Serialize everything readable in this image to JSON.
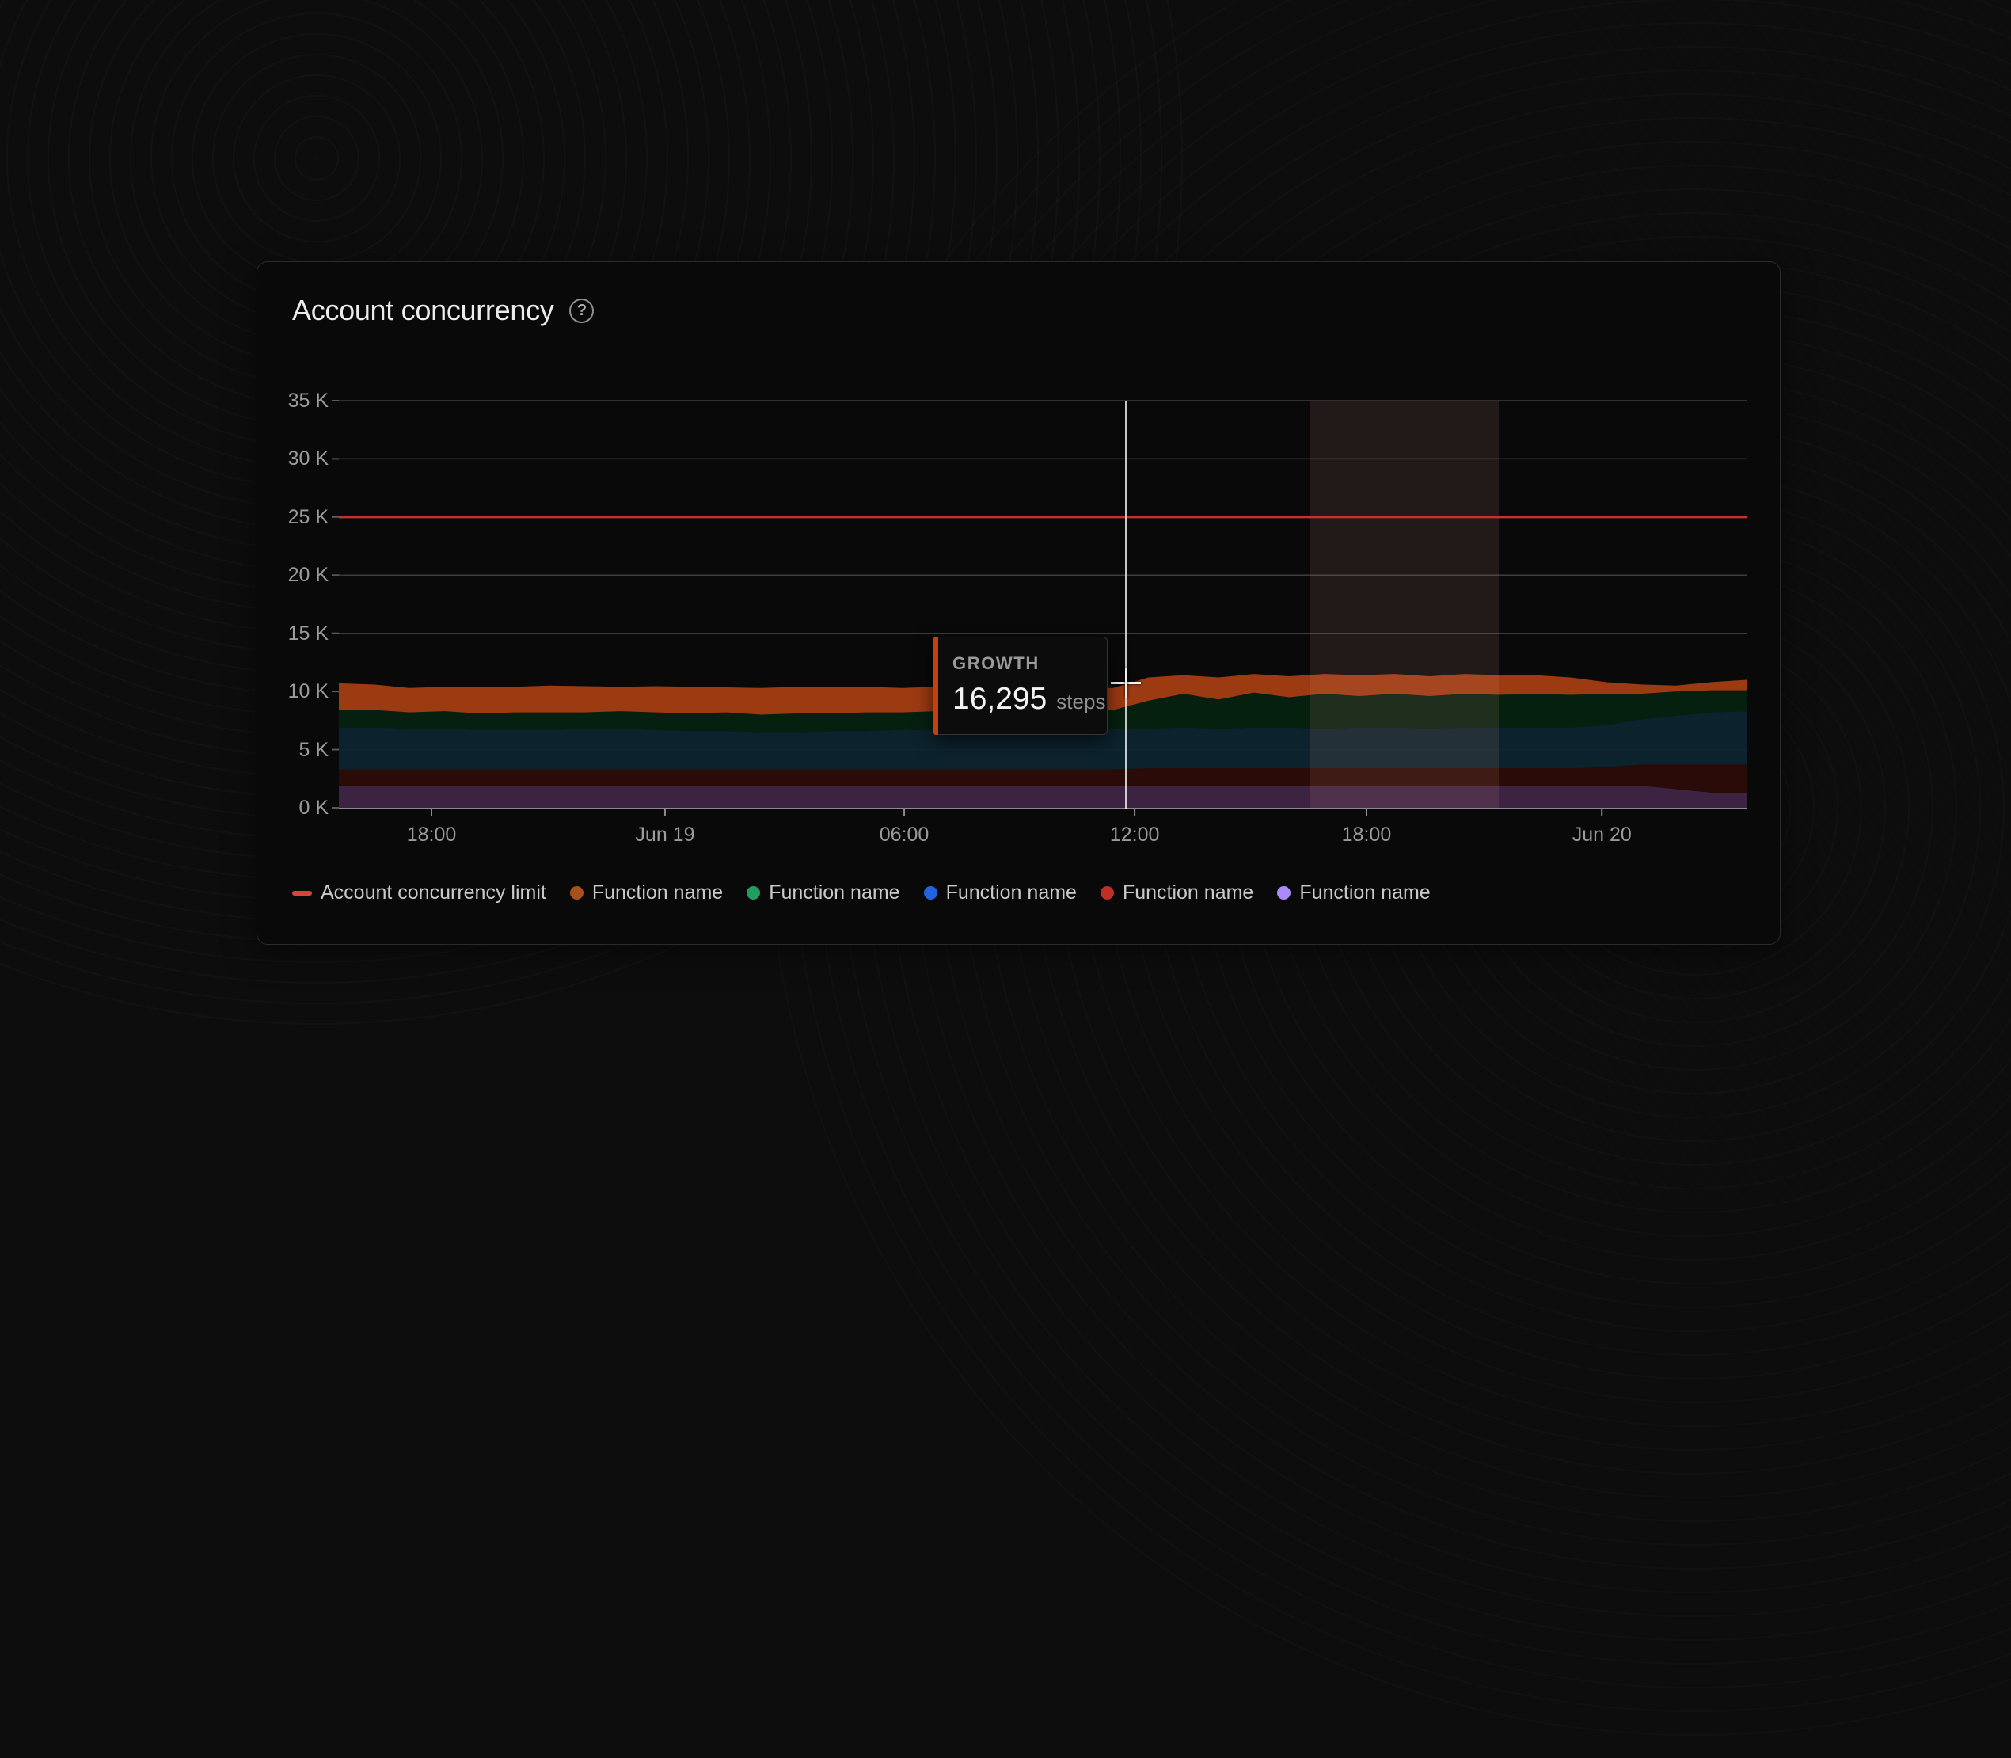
{
  "page": {
    "background": "#0d0d0d"
  },
  "card": {
    "title": "Account concurrency",
    "icons": {
      "help": "?"
    }
  },
  "tooltip": {
    "label": "GROWTH",
    "value": "16,295",
    "unit": "steps",
    "accent_color": "#c2410c"
  },
  "legend": {
    "items": [
      {
        "label": "Account concurrency limit",
        "marker": "dash",
        "color": "#d6453a"
      },
      {
        "label": "Function name",
        "marker": "dot",
        "color": "#a8501c"
      },
      {
        "label": "Function name",
        "marker": "dot",
        "color": "#1f9e5f"
      },
      {
        "label": "Function name",
        "marker": "dot",
        "color": "#2463e0"
      },
      {
        "label": "Function name",
        "marker": "dot",
        "color": "#bf2f26"
      },
      {
        "label": "Function name",
        "marker": "dot",
        "color": "#a98bfa"
      }
    ]
  },
  "chart_data": {
    "type": "area",
    "stacked": true,
    "title": "Account concurrency",
    "xlabel": "",
    "ylabel": "",
    "y_unit": "K (thousands of steps)",
    "ylim": [
      0,
      35
    ],
    "grid": "horizontal",
    "legend_position": "bottom",
    "y_ticks": [
      {
        "label": "0 K",
        "value": 0
      },
      {
        "label": "5 K",
        "value": 5
      },
      {
        "label": "10 K",
        "value": 10
      },
      {
        "label": "15 K",
        "value": 15
      },
      {
        "label": "20 K",
        "value": 20
      },
      {
        "label": "25 K",
        "value": 25
      },
      {
        "label": "30 K",
        "value": 30
      },
      {
        "label": "35 K",
        "value": 35
      }
    ],
    "x_ticks": [
      {
        "label": "18:00",
        "f": 0.0658
      },
      {
        "label": "Jun 19",
        "f": 0.2317
      },
      {
        "label": "06:00",
        "f": 0.4016
      },
      {
        "label": "12:00",
        "f": 0.5653
      },
      {
        "label": "18:00",
        "f": 0.73
      },
      {
        "label": "Jun 20",
        "f": 0.8972
      }
    ],
    "limit_line": {
      "label": "Account concurrency limit",
      "value": 25,
      "color": "#c9302a"
    },
    "highlight_band": {
      "f_start": 0.6896,
      "f_end": 0.824,
      "fill": "rgba(255,178,158,0.10)"
    },
    "cursor": {
      "f": 0.559,
      "hovered_series": "GROWTH",
      "hovered_value_steps": "16,295"
    },
    "axis_colors": {
      "gridline": "#3c3c3c",
      "baseline": "#8d8494",
      "tick": "#8a8a8a"
    },
    "series": [
      {
        "name": "Function name",
        "legend_color": "#a98bfa",
        "fill": "#3c2342",
        "values": [
          1.9,
          1.9,
          1.9,
          1.9,
          1.9,
          1.9,
          1.9,
          1.9,
          1.9,
          1.9,
          1.9,
          1.9,
          1.9,
          1.9,
          1.9,
          1.9,
          1.9,
          1.9,
          1.9,
          1.9,
          1.9,
          1.9,
          1.9,
          1.9,
          1.9,
          1.9,
          1.9,
          1.9,
          1.9,
          1.9,
          1.9,
          1.9,
          1.9,
          1.9,
          1.9,
          1.9,
          1.9,
          1.9,
          1.6,
          1.3,
          1.3
        ]
      },
      {
        "name": "Function name",
        "legend_color": "#bf2f26",
        "fill": "#2a0b07",
        "values": [
          1.4,
          1.4,
          1.4,
          1.4,
          1.4,
          1.4,
          1.4,
          1.4,
          1.4,
          1.4,
          1.4,
          1.4,
          1.4,
          1.4,
          1.4,
          1.4,
          1.4,
          1.4,
          1.4,
          1.4,
          1.4,
          1.4,
          1.4,
          1.5,
          1.5,
          1.5,
          1.5,
          1.5,
          1.5,
          1.5,
          1.5,
          1.5,
          1.5,
          1.5,
          1.5,
          1.5,
          1.6,
          1.8,
          2.1,
          2.4,
          2.4
        ]
      },
      {
        "name": "Function name",
        "legend_color": "#2463e0",
        "fill": "#0d2531",
        "values": [
          3.6,
          3.6,
          3.5,
          3.5,
          3.4,
          3.4,
          3.4,
          3.5,
          3.5,
          3.4,
          3.3,
          3.3,
          3.2,
          3.2,
          3.3,
          3.3,
          3.4,
          3.4,
          3.4,
          3.4,
          3.4,
          3.4,
          3.5,
          3.4,
          3.5,
          3.4,
          3.5,
          3.5,
          3.4,
          3.5,
          3.5,
          3.4,
          3.5,
          3.5,
          3.5,
          3.5,
          3.6,
          3.9,
          4.2,
          4.5,
          4.6
        ]
      },
      {
        "name": "Function name",
        "legend_color": "#1f9e5f",
        "fill": "#06200f",
        "values": [
          1.5,
          1.5,
          1.4,
          1.5,
          1.4,
          1.5,
          1.5,
          1.4,
          1.5,
          1.5,
          1.5,
          1.6,
          1.5,
          1.6,
          1.5,
          1.6,
          1.5,
          1.6,
          1.6,
          1.5,
          1.6,
          1.5,
          1.6,
          2.4,
          2.9,
          2.5,
          3.0,
          2.6,
          3.0,
          2.7,
          2.9,
          2.8,
          2.9,
          2.8,
          2.9,
          2.8,
          2.7,
          2.2,
          2.1,
          1.9,
          1.8
        ]
      },
      {
        "name": "Function name",
        "legend_color": "#a8501c",
        "fill": "#9c3a12",
        "values": [
          2.3,
          2.2,
          2.1,
          2.1,
          2.3,
          2.2,
          2.3,
          2.25,
          2.1,
          2.25,
          2.3,
          2.15,
          2.3,
          2.3,
          2.25,
          2.2,
          2.1,
          2.1,
          2.0,
          2.15,
          2.0,
          2.1,
          1.9,
          2.0,
          1.6,
          1.9,
          1.6,
          1.8,
          1.7,
          1.8,
          1.7,
          1.7,
          1.7,
          1.7,
          1.6,
          1.5,
          1.0,
          0.8,
          0.5,
          0.7,
          0.9
        ]
      }
    ]
  }
}
